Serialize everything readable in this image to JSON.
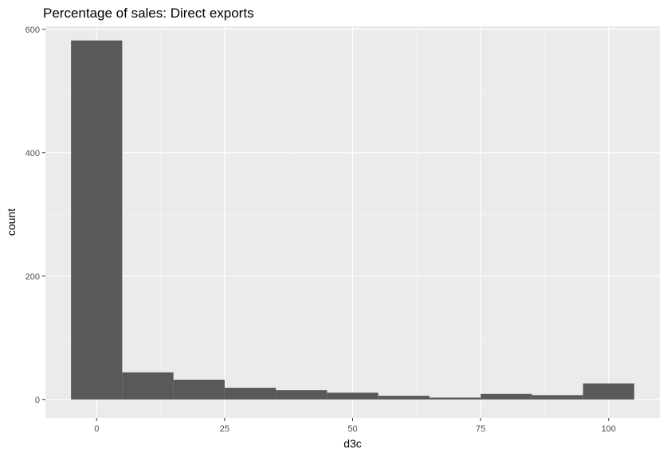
{
  "chart_data": {
    "type": "bar",
    "title": "Percentage of sales: Direct exports",
    "xlabel": "d3c",
    "ylabel": "count",
    "xlim": [
      -10,
      110
    ],
    "ylim": [
      -30,
      605
    ],
    "x_ticks": [
      0,
      25,
      50,
      75,
      100
    ],
    "y_ticks": [
      0,
      200,
      400,
      600
    ],
    "bin_width": 10,
    "bins": [
      {
        "x0": -5,
        "x1": 5,
        "count": 582
      },
      {
        "x0": 5,
        "x1": 15,
        "count": 44
      },
      {
        "x0": 15,
        "x1": 25,
        "count": 32
      },
      {
        "x0": 25,
        "x1": 35,
        "count": 19
      },
      {
        "x0": 35,
        "x1": 45,
        "count": 15
      },
      {
        "x0": 45,
        "x1": 55,
        "count": 11
      },
      {
        "x0": 55,
        "x1": 65,
        "count": 6
      },
      {
        "x0": 65,
        "x1": 75,
        "count": 3
      },
      {
        "x0": 75,
        "x1": 85,
        "count": 9
      },
      {
        "x0": 85,
        "x1": 95,
        "count": 7
      },
      {
        "x0": 95,
        "x1": 105,
        "count": 26
      }
    ],
    "grid": true,
    "legend": "none",
    "colors": {
      "panel_background": "#ebebeb",
      "grid_major": "#ffffff",
      "grid_minor": "#f5f5f5",
      "bar_fill": "#595959",
      "tick_label": "#4d4d4d",
      "tick_mark": "#333333"
    }
  }
}
